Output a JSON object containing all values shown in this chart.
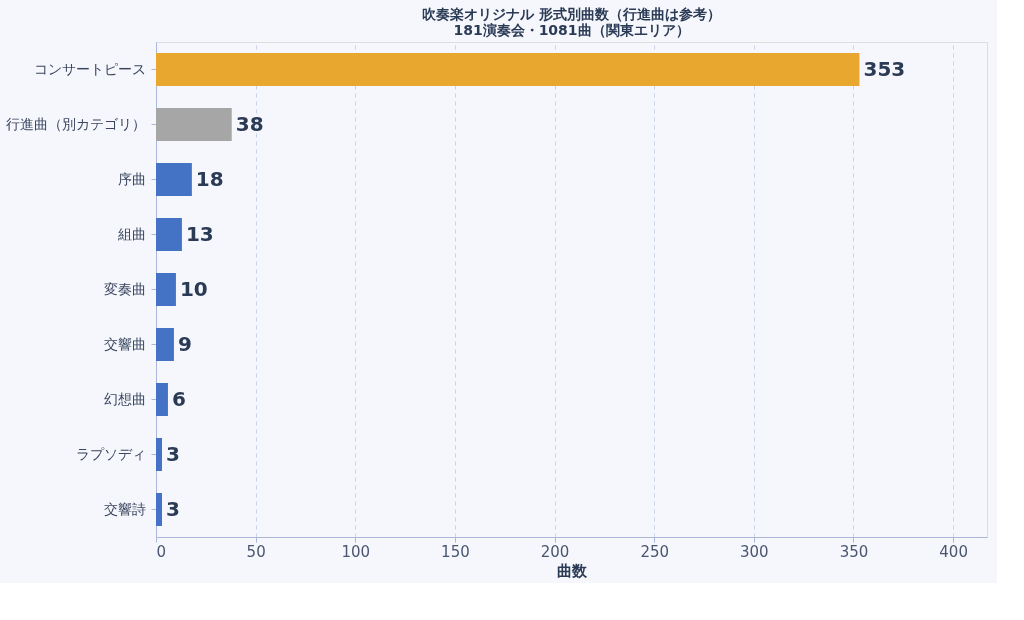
{
  "chart_data": {
    "type": "bar",
    "orientation": "horizontal",
    "title": "吹奏楽オリジナル 形式別曲数（行進曲は参考）",
    "subtitle": "181演奏会・1081曲（関東エリア）",
    "categories": [
      "コンサートピース",
      "行進曲（別カテゴリ）",
      "序曲",
      "組曲",
      "変奏曲",
      "交響曲",
      "幻想曲",
      "ラプソディ",
      "交響詩"
    ],
    "values": [
      353,
      38,
      18,
      13,
      10,
      9,
      6,
      3,
      3
    ],
    "colors": [
      "#e8a72e",
      "#a6a6a6",
      "#4472c4",
      "#4472c4",
      "#4472c4",
      "#4472c4",
      "#4472c4",
      "#4472c4",
      "#4472c4"
    ],
    "xlim": [
      0,
      417
    ],
    "xticks": [
      0,
      50,
      100,
      150,
      200,
      250,
      300,
      350,
      400
    ],
    "xlabel": "曲数",
    "grid": "x",
    "data_labels": true
  }
}
